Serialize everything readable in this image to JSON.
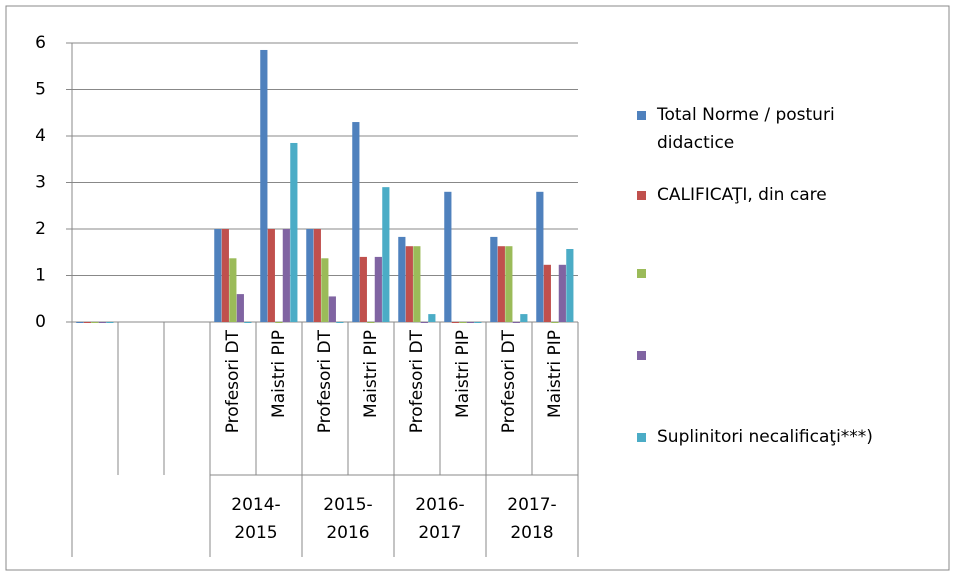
{
  "chart_data": {
    "type": "bar",
    "categories": [
      null,
      null,
      null,
      "Profesori DT",
      "Maistri PIP",
      "Profesori DT",
      "Maistri PIP",
      "Profesori DT",
      "Maistri PIP",
      "Profesori DT",
      "Maistri PIP"
    ],
    "groups": [
      "2014-\n2015",
      "2015-\n2016",
      "2016-\n2017",
      "2017-\n2018"
    ],
    "series": [
      {
        "name": "Total Norme / posturi\ndidactice",
        "color": "#4f81bd",
        "values": [
          0,
          null,
          null,
          2,
          5.85,
          2,
          4.3,
          1.83,
          2.8,
          1.83,
          2.8
        ]
      },
      {
        "name": "CALIFICAŢI, din care",
        "color": "#c0504d",
        "values": [
          0,
          null,
          null,
          2,
          2,
          2,
          1.4,
          1.63,
          0,
          1.63,
          1.23
        ]
      },
      {
        "name": null,
        "color": "#9bbb59",
        "values": [
          0,
          null,
          null,
          1.37,
          0,
          1.37,
          0,
          1.63,
          0,
          1.63,
          0
        ]
      },
      {
        "name": null,
        "color": "#8064a2",
        "values": [
          0,
          null,
          null,
          0.6,
          2,
          0.55,
          1.4,
          0,
          0,
          0,
          1.23
        ]
      },
      {
        "name": "Suplinitori necalificaţi***)",
        "color": "#4bacc6",
        "values": [
          0,
          null,
          null,
          0,
          3.85,
          0,
          2.9,
          0.17,
          0,
          0.17,
          1.57
        ]
      }
    ],
    "ylim": [
      0,
      6
    ],
    "yticks": [
      0,
      1,
      2,
      3,
      4,
      5,
      6
    ],
    "grid": true,
    "legend": "right"
  }
}
